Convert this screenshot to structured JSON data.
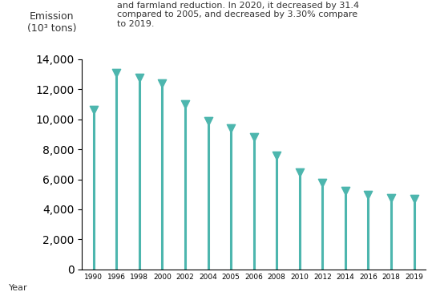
{
  "chart_data": {
    "type": "stem",
    "annotation": "and farmland reduction. In 2020, it decreased by 31.4\ncompared to 2005, and decreased by 3.30% compare\nto 2019.",
    "y_label": "Emission\n(10³ tons)",
    "x_label": "Year",
    "categories": [
      "1990",
      "1996",
      "1998",
      "2000",
      "2002",
      "2004",
      "2005",
      "2006",
      "2008",
      "2010",
      "2012",
      "2014",
      "2016",
      "2018",
      "2019"
    ],
    "values": [
      10600,
      13100,
      12750,
      12400,
      11000,
      9850,
      9400,
      8800,
      7600,
      6450,
      5750,
      5200,
      4950,
      4750,
      4700
    ],
    "color": "#4db6ae",
    "marker": "triangle_down",
    "ylim": [
      0,
      14000
    ],
    "yticks": [
      0,
      {
        "value": 2000,
        "label": "2,000"
      },
      {
        "value": 4000,
        "label": "4,000"
      },
      {
        "value": 6000,
        "label": "6,000"
      },
      {
        "value": 8000,
        "label": "8,000"
      },
      {
        "value": 10000,
        "label": "10,000"
      },
      {
        "value": 12000,
        "label": "12,000"
      },
      {
        "value": 14000,
        "label": "14,000"
      }
    ],
    "grid": false
  }
}
